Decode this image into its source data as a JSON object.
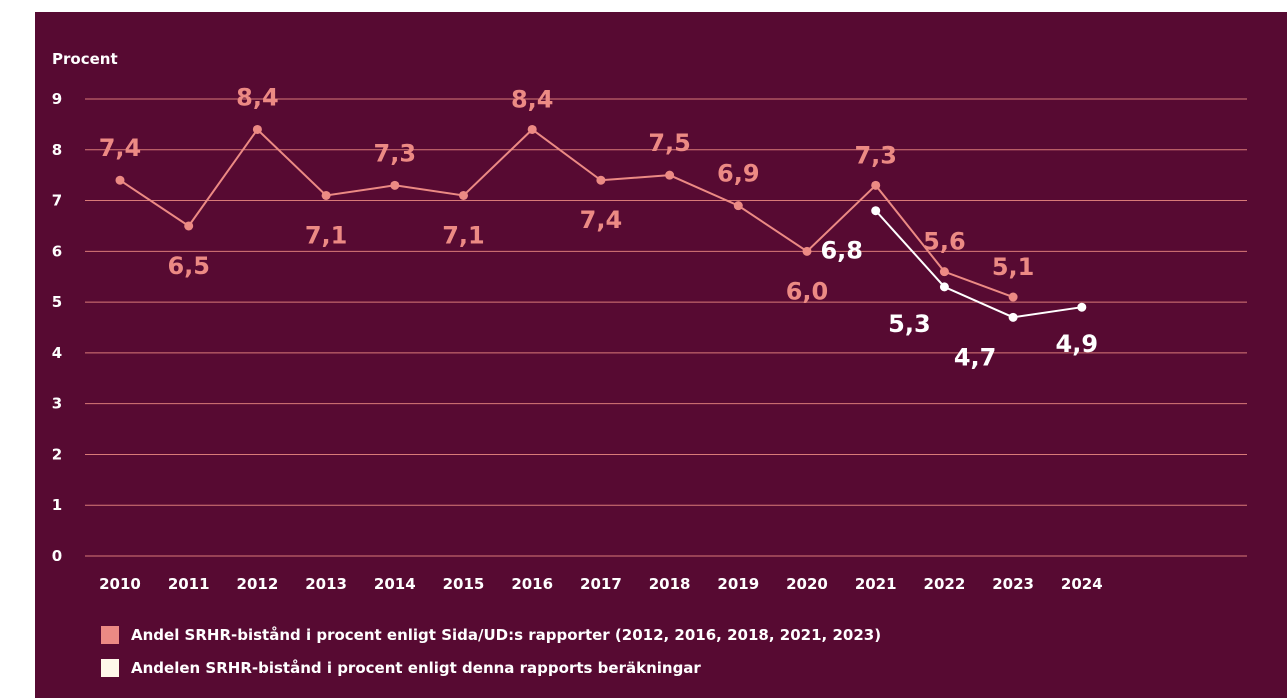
{
  "colors": {
    "background": "#570a32",
    "grid": "#d97b78",
    "series_a": "#ec8a84",
    "series_b": "#ffffff",
    "text": "#ffffff",
    "swatch_b": "#fff8ea"
  },
  "chart_data": {
    "type": "line",
    "ylabel": "Procent",
    "ylim": [
      0,
      9
    ],
    "yticks": [
      "0",
      "1",
      "2",
      "3",
      "4",
      "5",
      "6",
      "7",
      "8",
      "9"
    ],
    "categories": [
      "2010",
      "2011",
      "2012",
      "2013",
      "2014",
      "2015",
      "2016",
      "2017",
      "2018",
      "2019",
      "2020",
      "2021",
      "2022",
      "2023",
      "2024"
    ],
    "grid": true,
    "legend_position": "bottom-left",
    "series": [
      {
        "name": "Andel SRHR-bistånd i procent enligt Sida/UD:s rapporter (2012, 2016, 2018, 2021, 2023)",
        "values": [
          7.4,
          6.5,
          8.4,
          7.1,
          7.3,
          7.1,
          8.4,
          7.4,
          7.5,
          6.9,
          6.0,
          7.3,
          5.6,
          5.1,
          null
        ],
        "labels": [
          "7,4",
          "6,5",
          "8,4",
          "7,1",
          "7,3",
          "7,1",
          "8,4",
          "7,4",
          "7,5",
          "6,9",
          "6,0",
          "7,3",
          "5,6",
          "5,1",
          null
        ]
      },
      {
        "name": "Andelen SRHR-bistånd i procent enligt denna rapports beräkningar",
        "values": [
          null,
          null,
          null,
          null,
          null,
          null,
          null,
          null,
          null,
          null,
          null,
          6.8,
          5.3,
          4.7,
          4.9
        ],
        "labels": [
          null,
          null,
          null,
          null,
          null,
          null,
          null,
          null,
          null,
          null,
          null,
          "6,8",
          "5,3",
          "4,7",
          "4,9"
        ]
      }
    ]
  }
}
